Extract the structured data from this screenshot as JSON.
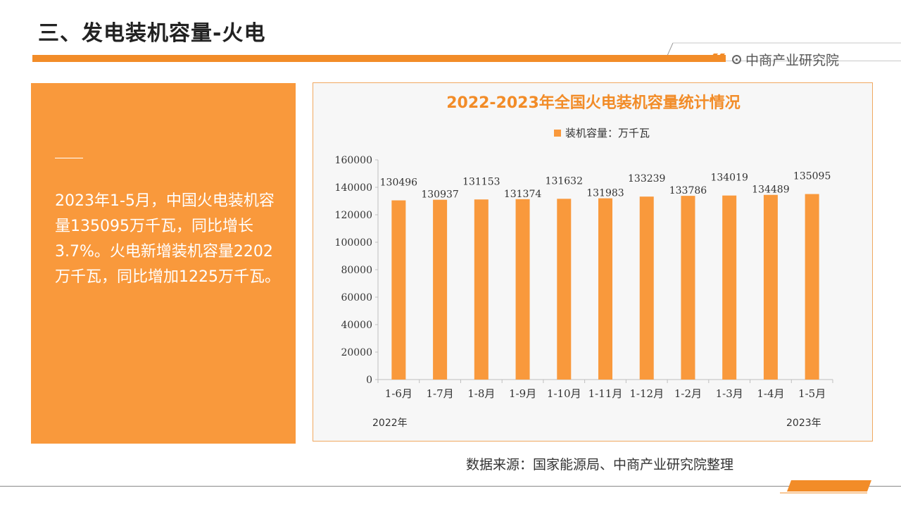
{
  "header": {
    "title": "三、发电装机容量-火电",
    "brand": "中商产业研究院"
  },
  "summary": {
    "text": "2023年1-5月，中国火电装机容量135095万千瓦，同比增长3.7%。火电新增装机容量2202万千瓦，同比增加1225万千瓦。"
  },
  "footer": {
    "source": "数据来源：国家能源局、中商产业研究院整理"
  },
  "colors": {
    "accent": "#f28c28",
    "bar": "#f9993c",
    "panel": "#f9993c"
  },
  "chart_data": {
    "type": "bar",
    "title": "2022-2023年全国火电装机容量统计情况",
    "legend": "装机容量：万千瓦",
    "legend_position": "top",
    "categories": [
      "1-6月",
      "1-7月",
      "1-8月",
      "1-9月",
      "1-10月",
      "1-11月",
      "1-12月",
      "1-2月",
      "1-3月",
      "1-4月",
      "1-5月"
    ],
    "values": [
      130496,
      130937,
      131153,
      131374,
      131632,
      131983,
      133239,
      133786,
      134019,
      134489,
      135095
    ],
    "year_labels": [
      "2022年",
      "2023年"
    ],
    "ylim": [
      0,
      160000
    ],
    "yticks": [
      0,
      20000,
      40000,
      60000,
      80000,
      100000,
      120000,
      140000,
      160000
    ],
    "grid": false
  }
}
